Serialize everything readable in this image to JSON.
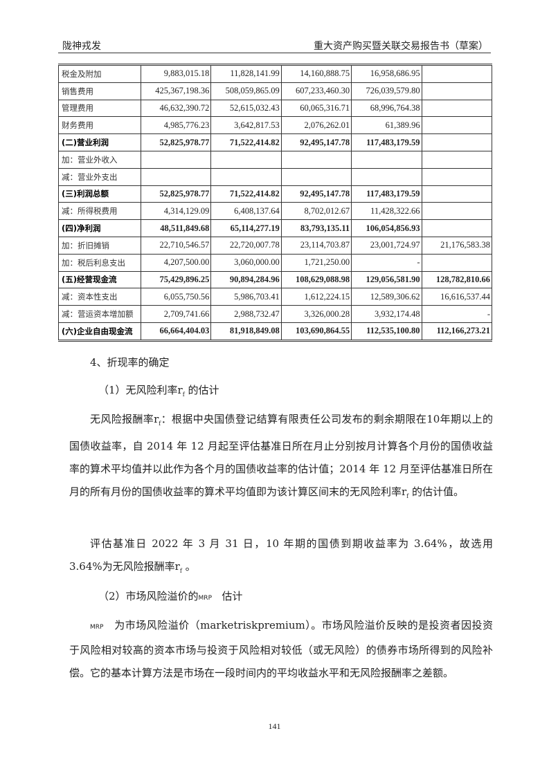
{
  "header": {
    "left": "陇神戎发",
    "right": "重大资产购买暨关联交易报告书（草案）"
  },
  "table": {
    "rows": [
      {
        "label": "税金及附加",
        "values": [
          "9,883,015.18",
          "11,828,141.99",
          "14,160,888.75",
          "16,958,686.95",
          ""
        ],
        "bold": false
      },
      {
        "label": "销售费用",
        "values": [
          "425,367,198.36",
          "508,059,865.09",
          "607,233,460.30",
          "726,039,579.80",
          ""
        ],
        "bold": false
      },
      {
        "label": "管理费用",
        "values": [
          "46,632,390.72",
          "52,615,032.43",
          "60,065,316.71",
          "68,996,764.38",
          ""
        ],
        "bold": false
      },
      {
        "label": "财务费用",
        "values": [
          "4,985,776.23",
          "3,642,817.53",
          "2,076,262.01",
          "61,389.96",
          ""
        ],
        "bold": false
      },
      {
        "label": "(二)营业利润",
        "values": [
          "52,825,978.77",
          "71,522,414.82",
          "92,495,147.78",
          "117,483,179.59",
          ""
        ],
        "bold": true
      },
      {
        "label": "加：营业外收入",
        "values": [
          "",
          "",
          "",
          "",
          ""
        ],
        "bold": false
      },
      {
        "label": "减：营业外支出",
        "values": [
          "",
          "",
          "",
          "",
          ""
        ],
        "bold": false
      },
      {
        "label": "(三)利润总额",
        "values": [
          "52,825,978.77",
          "71,522,414.82",
          "92,495,147.78",
          "117,483,179.59",
          ""
        ],
        "bold": true
      },
      {
        "label": "减：所得税费用",
        "values": [
          "4,314,129.09",
          "6,408,137.64",
          "8,702,012.67",
          "11,428,322.66",
          ""
        ],
        "bold": false
      },
      {
        "label": "(四)净利润",
        "values": [
          "48,511,849.68",
          "65,114,277.19",
          "83,793,135.11",
          "106,054,856.93",
          ""
        ],
        "bold": true
      },
      {
        "label": "加：折旧摊销",
        "values": [
          "22,710,546.57",
          "22,720,007.78",
          "23,114,703.87",
          "23,001,724.97",
          "21,176,583.38"
        ],
        "bold": false
      },
      {
        "label": "加：税后利息支出",
        "values": [
          "4,207,500.00",
          "3,060,000.00",
          "1,721,250.00",
          "-",
          ""
        ],
        "bold": false
      },
      {
        "label": "(五)经营现金流",
        "values": [
          "75,429,896.25",
          "90,894,284.96",
          "108,629,088.98",
          "129,056,581.90",
          "128,782,810.66"
        ],
        "bold": true
      },
      {
        "label": "减：资本性支出",
        "values": [
          "6,055,750.56",
          "5,986,703.41",
          "1,612,224.15",
          "12,589,306.62",
          "16,616,537.44"
        ],
        "bold": false
      },
      {
        "label": "减：营运资本增加额",
        "values": [
          "2,709,741.66",
          "2,988,732.47",
          "3,326,000.28",
          "3,932,174.48",
          "-"
        ],
        "bold": false
      },
      {
        "label": "(六)企业自由现金流",
        "values": [
          "66,664,404.03",
          "81,918,849.08",
          "103,690,864.55",
          "112,535,100.80",
          "112,166,273.21"
        ],
        "bold": true
      }
    ]
  },
  "body": {
    "s4": "4、折现率的确定",
    "s4_1": "（1）无风险利率r",
    "s4_1b": "的估计",
    "p1a": "无风险报酬率r",
    "p1b": "：根据中央国债登记结算有限责任公司发布的剩余期限在10年期以上的国债收益率，自 2014 年 12 月起至评估基准日所在月止分别按月计算各个月份的国债收益率的算术平均值并以此作为各个月的国债收益率的估计值；2014 年 12 月至评估基准日所在月的所有月份的国债收益率的算术平均值即为该计算区间末的无风险利率r",
    "p1c": "的估计值。",
    "p2a": "评估基准日 2022 年 3 月 31 日，10 年期的国债到期收益率为 3.64%，故选用 3.64%为无风险报酬率r",
    "p2b": "。",
    "sub": "f",
    "s4_2a": "（2）市场风险溢价的",
    "mrp": "MRP",
    "s4_2b": "估计",
    "p3": "为市场风险溢价（marketriskpremium）。市场风险溢价反映的是投资者因投资于风险相对较高的资本市场与投资于风险相对较低（或无风险）的债券市场所得到的风险补偿。它的基本计算方法是市场在一段时间内的平均收益水平和无风险报酬率之差额。"
  },
  "page_number": "141"
}
